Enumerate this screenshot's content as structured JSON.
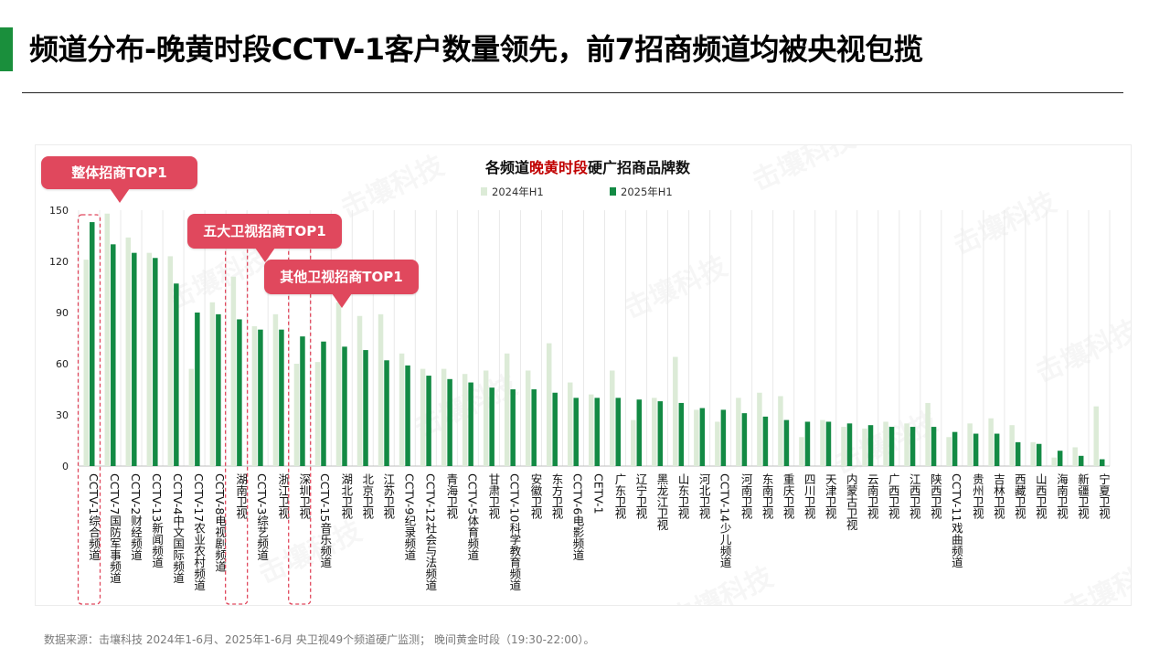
{
  "header": {
    "title": "频道分布-晚黄时段CCTV-1客户数量领先，前7招商频道均被央视包揽",
    "accent_color": "#1a8f3c"
  },
  "callouts": {
    "overall": "整体招商TOP1",
    "top5_satellite": "五大卫视招商TOP1",
    "other_satellite": "其他卫视招商TOP1",
    "color": "#e0485d"
  },
  "footer": {
    "source": "数据来源：击壤科技  2024年1-6月、2025年1-6月 央卫视49个频道硬广监测； 晚间黄金时段（19:30-22:00）。"
  },
  "watermark": "击壤科技",
  "chart_data": {
    "type": "bar",
    "title_parts": [
      "各频道",
      "晚黄时段",
      "硬广招商品牌数"
    ],
    "title_highlight_color": "#c00000",
    "ylim": [
      0,
      150
    ],
    "yticks": [
      0,
      30,
      60,
      90,
      120,
      150
    ],
    "legend_position": "top-center",
    "grid": true,
    "categories": [
      "CCTV-1综合频道",
      "CCTV-7国防军事频道",
      "CCTV-2财经频道",
      "CCTV-13新闻频道",
      "CCTV-4中文国际频道",
      "CCTV-17农业农村频道",
      "CCTV-8电视剧频道",
      "湖南卫视",
      "CCTV-3综艺频道",
      "浙江卫视",
      "深圳卫视",
      "CCTV-15音乐频道",
      "湖北卫视",
      "北京卫视",
      "江苏卫视",
      "CCTV-9纪录频道",
      "CCTV-12社会与法频道",
      "青海卫视",
      "CCTV-5体育频道",
      "甘肃卫视",
      "CCTV-10科学教育频道",
      "安徽卫视",
      "东方卫视",
      "CCTV-6电影频道",
      "CETV-1",
      "广东卫视",
      "辽宁卫视",
      "黑龙江卫视",
      "山东卫视",
      "河北卫视",
      "CCTV-14少儿频道",
      "河南卫视",
      "东南卫视",
      "重庆卫视",
      "四川卫视",
      "天津卫视",
      "内蒙古卫视",
      "云南卫视",
      "广西卫视",
      "江西卫视",
      "陕西卫视",
      "CCTV-11戏曲频道",
      "贵州卫视",
      "吉林卫视",
      "西藏卫视",
      "山西卫视",
      "海南卫视",
      "新疆卫视",
      "宁夏卫视"
    ],
    "series": [
      {
        "name": "2024年H1",
        "color": "#dcebd7",
        "values": [
          121,
          148,
          134,
          125,
          123,
          57,
          96,
          111,
          82,
          89,
          60,
          61,
          96,
          88,
          89,
          66,
          57,
          57,
          54,
          56,
          66,
          56,
          72,
          49,
          42,
          56,
          27,
          40,
          64,
          33,
          26,
          40,
          43,
          41,
          17,
          27,
          23,
          22,
          26,
          25,
          37,
          17,
          25,
          28,
          24,
          14,
          5,
          11,
          35
        ]
      },
      {
        "name": "2025年H1",
        "color": "#138a44",
        "values": [
          143,
          130,
          125,
          122,
          107,
          90,
          89,
          86,
          80,
          80,
          76,
          73,
          70,
          68,
          62,
          59,
          53,
          51,
          49,
          46,
          45,
          45,
          43,
          40,
          40,
          40,
          39,
          38,
          37,
          34,
          33,
          31,
          29,
          27,
          26,
          26,
          25,
          24,
          23,
          23,
          23,
          20,
          19,
          19,
          14,
          13,
          9,
          6,
          4
        ]
      }
    ]
  }
}
